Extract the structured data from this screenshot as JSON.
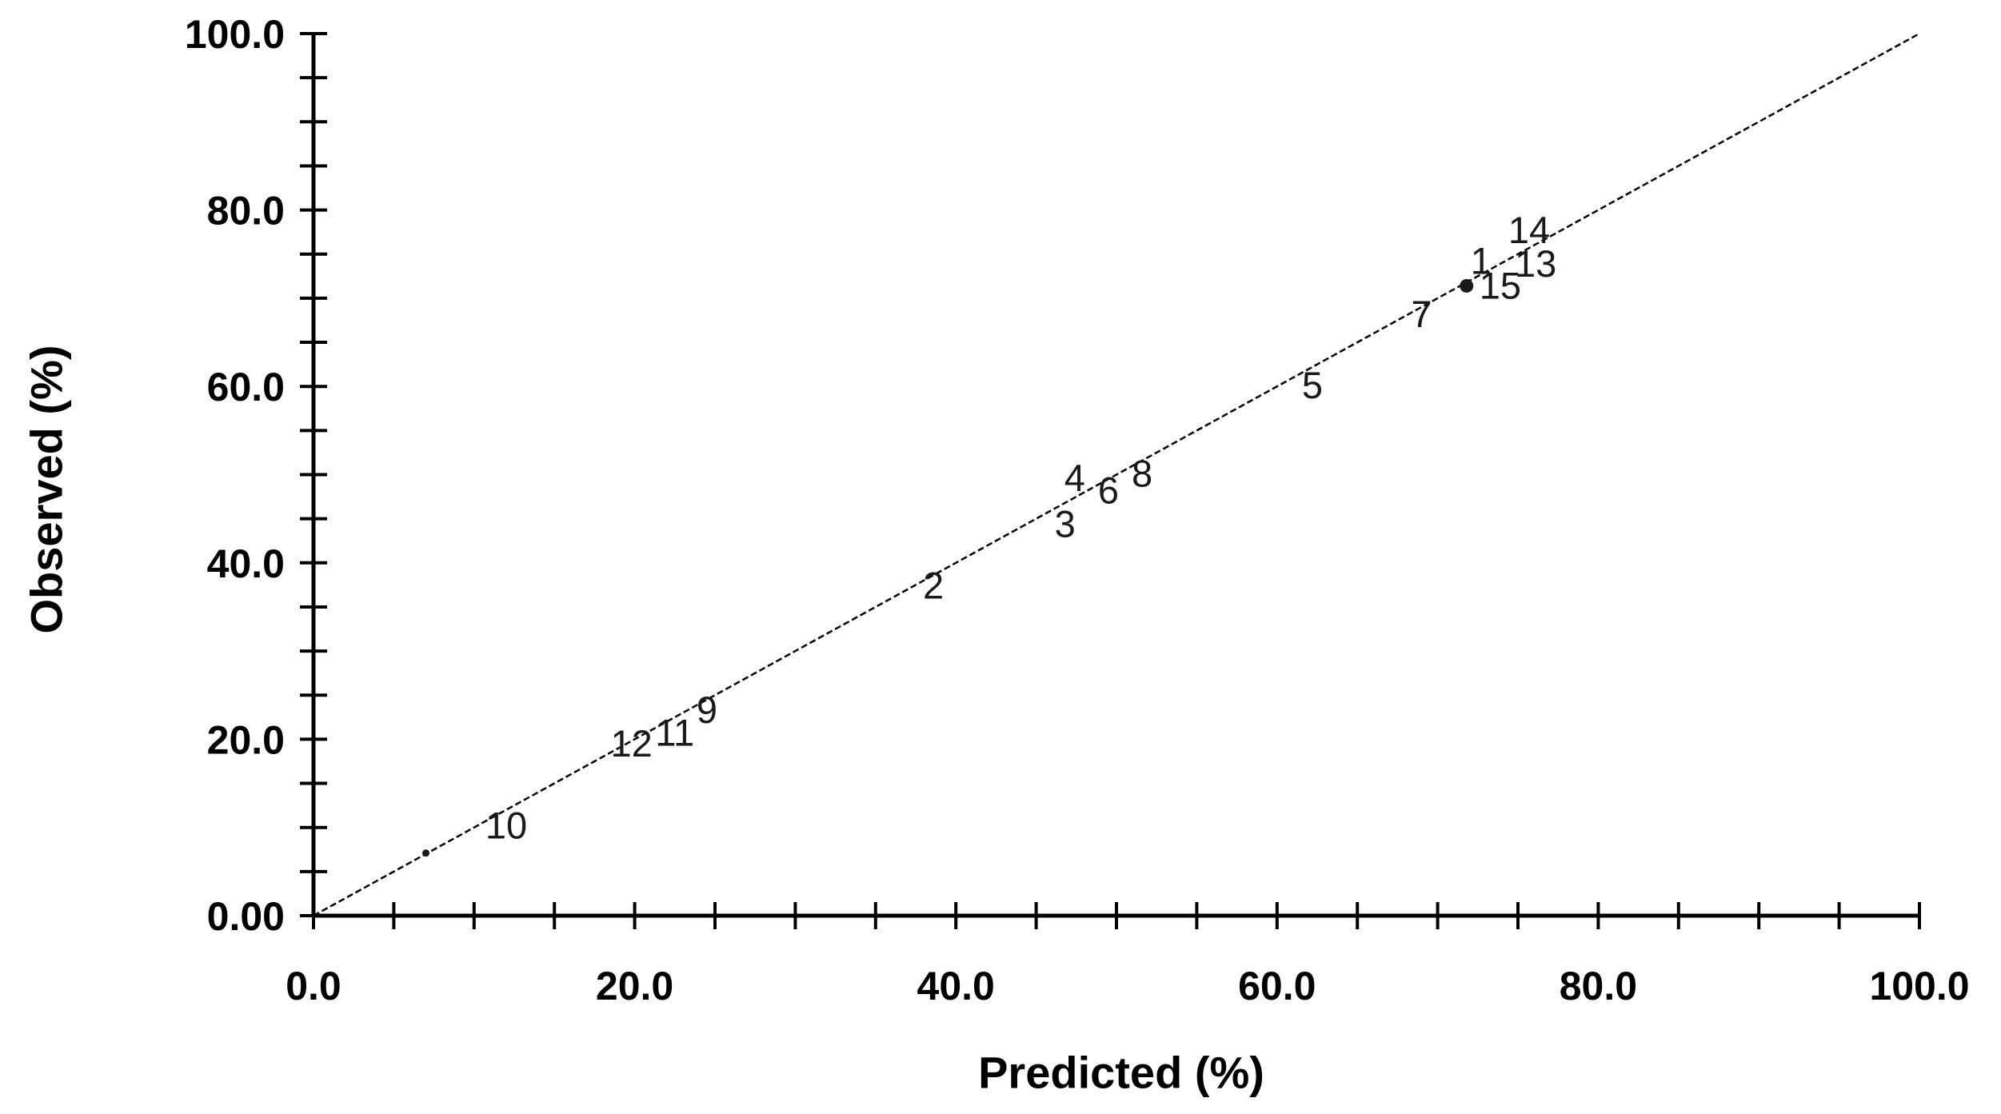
{
  "figure": {
    "background_color": "#ffffff",
    "axis_color": "#000000",
    "tick_label_color": "#000000",
    "point_label_color": "#1a1a1a",
    "identity_line_color": "#000000"
  },
  "chart_data": {
    "type": "scatter",
    "title": "",
    "xlabel": "Predicted (%)",
    "ylabel": "Observed (%)",
    "xlim": [
      0,
      100
    ],
    "ylim": [
      0,
      100
    ],
    "grid": false,
    "legend": "none",
    "minor_tick_step": 5,
    "x_tick_labels": [
      {
        "value": 0,
        "label": "0.0"
      },
      {
        "value": 20,
        "label": "20.0"
      },
      {
        "value": 40,
        "label": "40.0"
      },
      {
        "value": 60,
        "label": "60.0"
      },
      {
        "value": 80,
        "label": "80.0"
      },
      {
        "value": 100,
        "label": "100.0"
      }
    ],
    "y_tick_labels": [
      {
        "value": 0,
        "label": "0.00"
      },
      {
        "value": 20,
        "label": "20.0"
      },
      {
        "value": 40,
        "label": "40.0"
      },
      {
        "value": 60,
        "label": "60.0"
      },
      {
        "value": 80,
        "label": "80.0"
      },
      {
        "value": 100,
        "label": "100.0"
      }
    ],
    "identity_line": {
      "from": [
        0,
        0
      ],
      "to": [
        100,
        100
      ],
      "style": "dashed-thin"
    },
    "points": [
      {
        "label": "1",
        "predicted": 72.7,
        "observed": 74.2
      },
      {
        "label": "2",
        "predicted": 38.6,
        "observed": 37.4
      },
      {
        "label": "3",
        "predicted": 46.8,
        "observed": 44.4
      },
      {
        "label": "4",
        "predicted": 47.4,
        "observed": 49.6
      },
      {
        "label": "5",
        "predicted": 62.2,
        "observed": 60.1
      },
      {
        "label": "6",
        "predicted": 49.5,
        "observed": 48.2
      },
      {
        "label": "7",
        "predicted": 69.0,
        "observed": 68.2
      },
      {
        "label": "8",
        "predicted": 51.6,
        "observed": 50.1
      },
      {
        "label": "9",
        "predicted": 24.5,
        "observed": 23.3
      },
      {
        "label": "10",
        "predicted": 12.0,
        "observed": 10.2
      },
      {
        "label": "11",
        "predicted": 22.5,
        "observed": 20.7
      },
      {
        "label": "12",
        "predicted": 19.8,
        "observed": 19.5
      },
      {
        "label": "13",
        "predicted": 76.1,
        "observed": 73.9
      },
      {
        "label": "14",
        "predicted": 75.7,
        "observed": 77.7
      },
      {
        "label": "15",
        "predicted": 73.9,
        "observed": 71.4
      }
    ],
    "marker_dots": [
      {
        "predicted": 7.0,
        "observed": 7.1,
        "size": "small"
      },
      {
        "predicted": 71.8,
        "observed": 71.4,
        "size": "large"
      }
    ]
  }
}
